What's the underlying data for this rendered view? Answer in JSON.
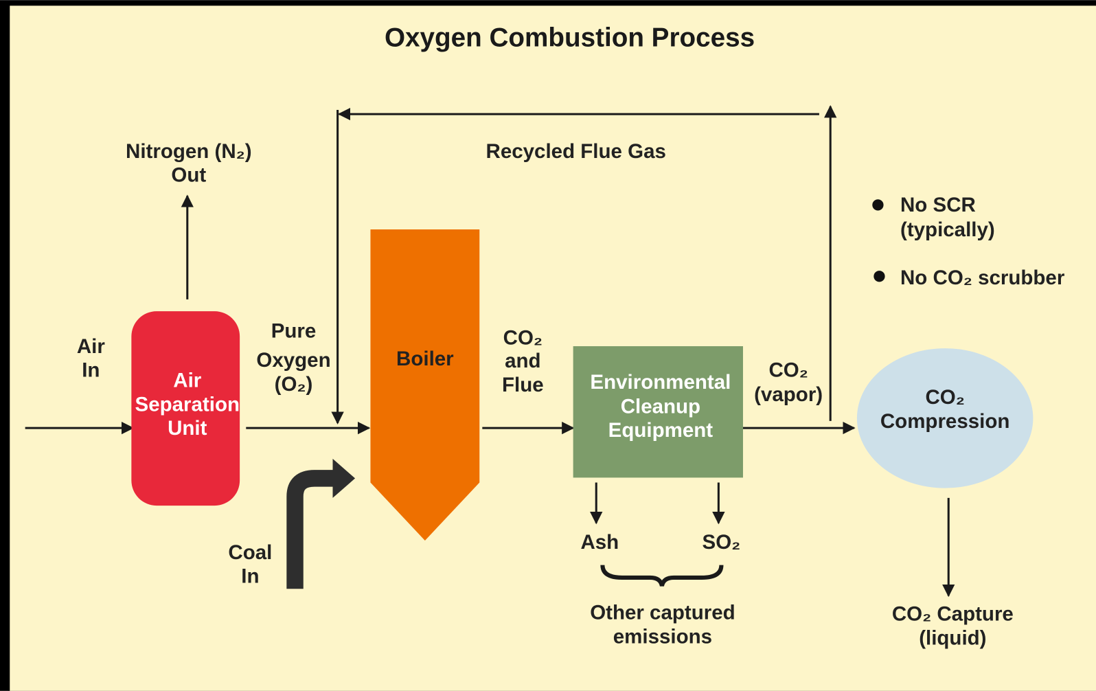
{
  "title": "Oxygen Combustion Process",
  "nodes": {
    "air_separation": {
      "lines": [
        "Air",
        "Separation",
        "Unit"
      ]
    },
    "boiler": {
      "label": "Boiler"
    },
    "cleanup": {
      "lines": [
        "Environmental",
        "Cleanup",
        "Equipment"
      ]
    },
    "compression": {
      "lines": [
        "CO₂",
        "Compression"
      ]
    }
  },
  "flows": {
    "air_in": [
      "Air",
      "In"
    ],
    "nitrogen_out": [
      "Nitrogen (N₂)",
      "Out"
    ],
    "pure_oxygen": [
      "Pure",
      "Oxygen",
      "(O₂)"
    ],
    "coal_in": [
      "Coal",
      "In"
    ],
    "co2_flue": [
      "CO₂",
      "and",
      "Flue"
    ],
    "co2_vapor": [
      "CO₂",
      "(vapor)"
    ],
    "recycled": "Recycled Flue Gas",
    "ash": "Ash",
    "so2": "SO₂",
    "other_emissions": [
      "Other captured",
      "emissions"
    ],
    "co2_capture": [
      "CO₂ Capture",
      "(liquid)"
    ]
  },
  "notes": [
    [
      "No SCR",
      "(typically)"
    ],
    [
      "No CO₂ scrubber"
    ]
  ]
}
